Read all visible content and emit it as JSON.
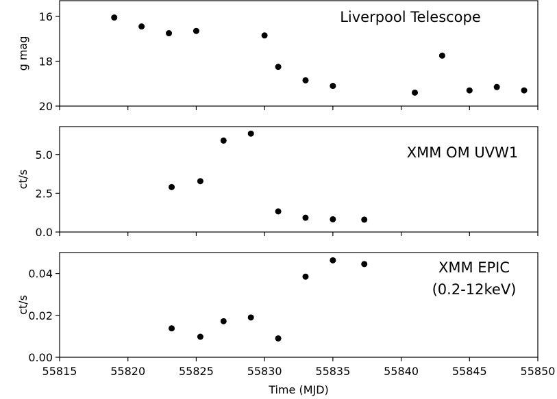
{
  "chart_data": [
    {
      "type": "scatter",
      "panel_label": "Liverpool Telescope",
      "ylabel": "g mag",
      "ylim": [
        20,
        15.3
      ],
      "y_inverted": true,
      "yticks": [
        16,
        18,
        20
      ],
      "ytick_labels": [
        "16",
        "18",
        "20"
      ],
      "x": [
        55819.0,
        55821.0,
        55823.0,
        55825.0,
        55830.0,
        55831.0,
        55833.0,
        55835.0,
        55841.0,
        55843.0,
        55845.0,
        55847.0,
        55849.0
      ],
      "y": [
        16.05,
        16.45,
        16.75,
        16.65,
        16.85,
        18.25,
        18.85,
        19.1,
        19.4,
        17.75,
        19.3,
        19.15,
        19.3
      ]
    },
    {
      "type": "scatter",
      "panel_label": "XMM OM UVW1",
      "ylabel": "ct/s",
      "ylim": [
        0,
        6.8
      ],
      "yticks": [
        0,
        2.5,
        5.0
      ],
      "ytick_labels": [
        "0.0",
        "2.5",
        "5.0"
      ],
      "x": [
        55823.2,
        55825.3,
        55827.0,
        55829.0,
        55831.0,
        55833.0,
        55835.0,
        55837.3
      ],
      "y": [
        2.9,
        3.28,
        5.9,
        6.35,
        1.33,
        0.92,
        0.82,
        0.8
      ]
    },
    {
      "type": "scatter",
      "panel_label": "XMM EPIC",
      "panel_label_2": "(0.2-12keV)",
      "ylabel": "ct/s",
      "xlabel": "Time (MJD)",
      "ylim": [
        0,
        0.05
      ],
      "yticks": [
        0,
        0.02,
        0.04
      ],
      "ytick_labels": [
        "0.00",
        "0.02",
        "0.04"
      ],
      "xlim": [
        55815,
        55850
      ],
      "xticks": [
        55815,
        55820,
        55825,
        55830,
        55835,
        55840,
        55845,
        55850
      ],
      "xtick_labels": [
        "55815",
        "55820",
        "55825",
        "55830",
        "55835",
        "55840",
        "55845",
        "55850"
      ],
      "x": [
        55823.2,
        55825.3,
        55827.0,
        55829.0,
        55831.0,
        55833.0,
        55835.0,
        55837.3
      ],
      "y": [
        0.0138,
        0.0098,
        0.0172,
        0.019,
        0.009,
        0.0385,
        0.0463,
        0.0445
      ]
    }
  ]
}
